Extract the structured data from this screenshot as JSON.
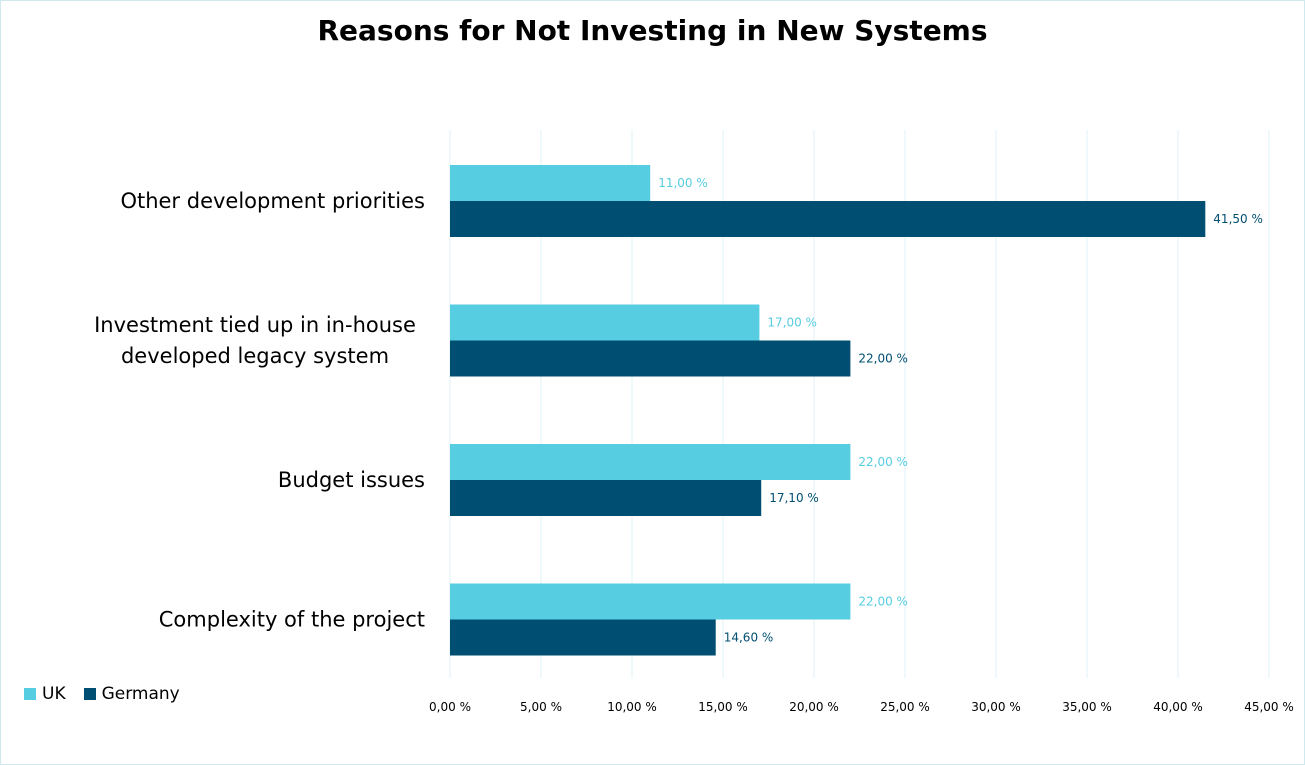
{
  "chart_data": {
    "type": "bar",
    "orientation": "horizontal",
    "title": "Reasons for Not Investing in New Systems",
    "categories": [
      [
        "Other development priorities"
      ],
      [
        "Investment tied up in in-house",
        "developed legacy system"
      ],
      [
        "Budget issues"
      ],
      [
        "Complexity of the project"
      ]
    ],
    "series": [
      {
        "name": "UK",
        "color": "#56cde0",
        "values": [
          11.0,
          17.0,
          22.0,
          22.0
        ],
        "labels": [
          "11,00 %",
          "17,00 %",
          "22,00 %",
          "22,00 %"
        ]
      },
      {
        "name": "Germany",
        "color": "#004f72",
        "values": [
          41.5,
          22.0,
          17.1,
          14.6
        ],
        "labels": [
          "41,50 %",
          "22,00 %",
          "17,10 %",
          "14,60 %"
        ]
      }
    ],
    "xlim": [
      0,
      45
    ],
    "xticks": [
      0,
      5,
      10,
      15,
      20,
      25,
      30,
      35,
      40,
      45
    ],
    "xtick_labels": [
      "0,00 %",
      "5,00 %",
      "10,00 %",
      "15,00 %",
      "20,00 %",
      "25,00 %",
      "30,00 %",
      "35,00 %",
      "40,00 %",
      "45,00 %"
    ],
    "grid": "vertical",
    "legend_position": "bottom-left",
    "xlabel": "",
    "ylabel": ""
  }
}
